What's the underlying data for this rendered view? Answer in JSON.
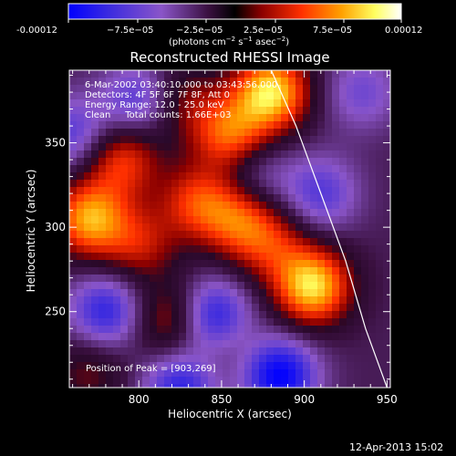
{
  "colorbar": {
    "tick_labels": [
      "-0.00012",
      "−7.5e−05",
      "−2.5e−05",
      "2.5e−05",
      "7.5e−05",
      "0.00012"
    ],
    "unit_main": "(photons cm",
    "unit_exp1": "−2",
    "unit_mid": " s",
    "unit_exp2": "−1",
    "unit_end": " asec",
    "unit_exp3": "−2",
    "unit_close": ")",
    "colors": [
      "#0000ff",
      "#5a2fd6",
      "#8a55c8",
      "#2a0a30",
      "#8b0000",
      "#ff4500",
      "#ffa500",
      "#ffff66",
      "#ffffff"
    ]
  },
  "chart_data": {
    "type": "heatmap",
    "title": "Reconstructed RHESSI Image",
    "xlabel": "Heliocentric X (arcsec)",
    "ylabel": "Heliocentric Y (arcsec)",
    "xlim": [
      758,
      952
    ],
    "ylim": [
      205,
      393
    ],
    "xticks": [
      800,
      850,
      900,
      950
    ],
    "yticks": [
      250,
      300,
      350
    ],
    "clim": [
      -0.00012,
      0.00012
    ],
    "annotations": [
      "6-Mar-2002 03:40:10.000 to 03:43:56.000",
      "Detectors: 4F 5F 6F 7F 8F, Att 0",
      "Energy Range: 12.0 - 25.0 keV",
      "Clean     Total counts: 1.66E+03"
    ],
    "peak_text": "Position of Peak = [903,269]",
    "peak": [
      903,
      269
    ],
    "blobs": [
      {
        "x": 880,
        "y": 380,
        "v": 1.0
      },
      {
        "x": 905,
        "y": 265,
        "v": 1.0
      },
      {
        "x": 855,
        "y": 355,
        "v": 0.7
      },
      {
        "x": 790,
        "y": 340,
        "v": 0.6
      },
      {
        "x": 770,
        "y": 305,
        "v": 0.85
      },
      {
        "x": 800,
        "y": 290,
        "v": 0.45
      },
      {
        "x": 835,
        "y": 315,
        "v": 0.55
      },
      {
        "x": 860,
        "y": 305,
        "v": 0.6
      },
      {
        "x": 880,
        "y": 290,
        "v": 0.45
      },
      {
        "x": 820,
        "y": 245,
        "v": 0.5
      },
      {
        "x": 850,
        "y": 235,
        "v": 0.35
      },
      {
        "x": 825,
        "y": 375,
        "v": 0.35
      },
      {
        "x": 770,
        "y": 215,
        "v": 0.3
      },
      {
        "x": 780,
        "y": 250,
        "v": -0.6
      },
      {
        "x": 760,
        "y": 355,
        "v": -0.45
      },
      {
        "x": 910,
        "y": 320,
        "v": -0.45
      },
      {
        "x": 845,
        "y": 245,
        "v": -0.9
      },
      {
        "x": 885,
        "y": 212,
        "v": -0.8
      },
      {
        "x": 800,
        "y": 375,
        "v": -0.5
      },
      {
        "x": 825,
        "y": 205,
        "v": -0.6
      },
      {
        "x": 870,
        "y": 330,
        "v": -0.3
      },
      {
        "x": 935,
        "y": 380,
        "v": -0.35
      }
    ],
    "limb": [
      [
        880,
        393
      ],
      [
        895,
        360
      ],
      [
        910,
        320
      ],
      [
        925,
        280
      ],
      [
        937,
        240
      ],
      [
        950,
        205
      ]
    ]
  },
  "footer": {
    "timestamp": "12-Apr-2013 15:02"
  }
}
